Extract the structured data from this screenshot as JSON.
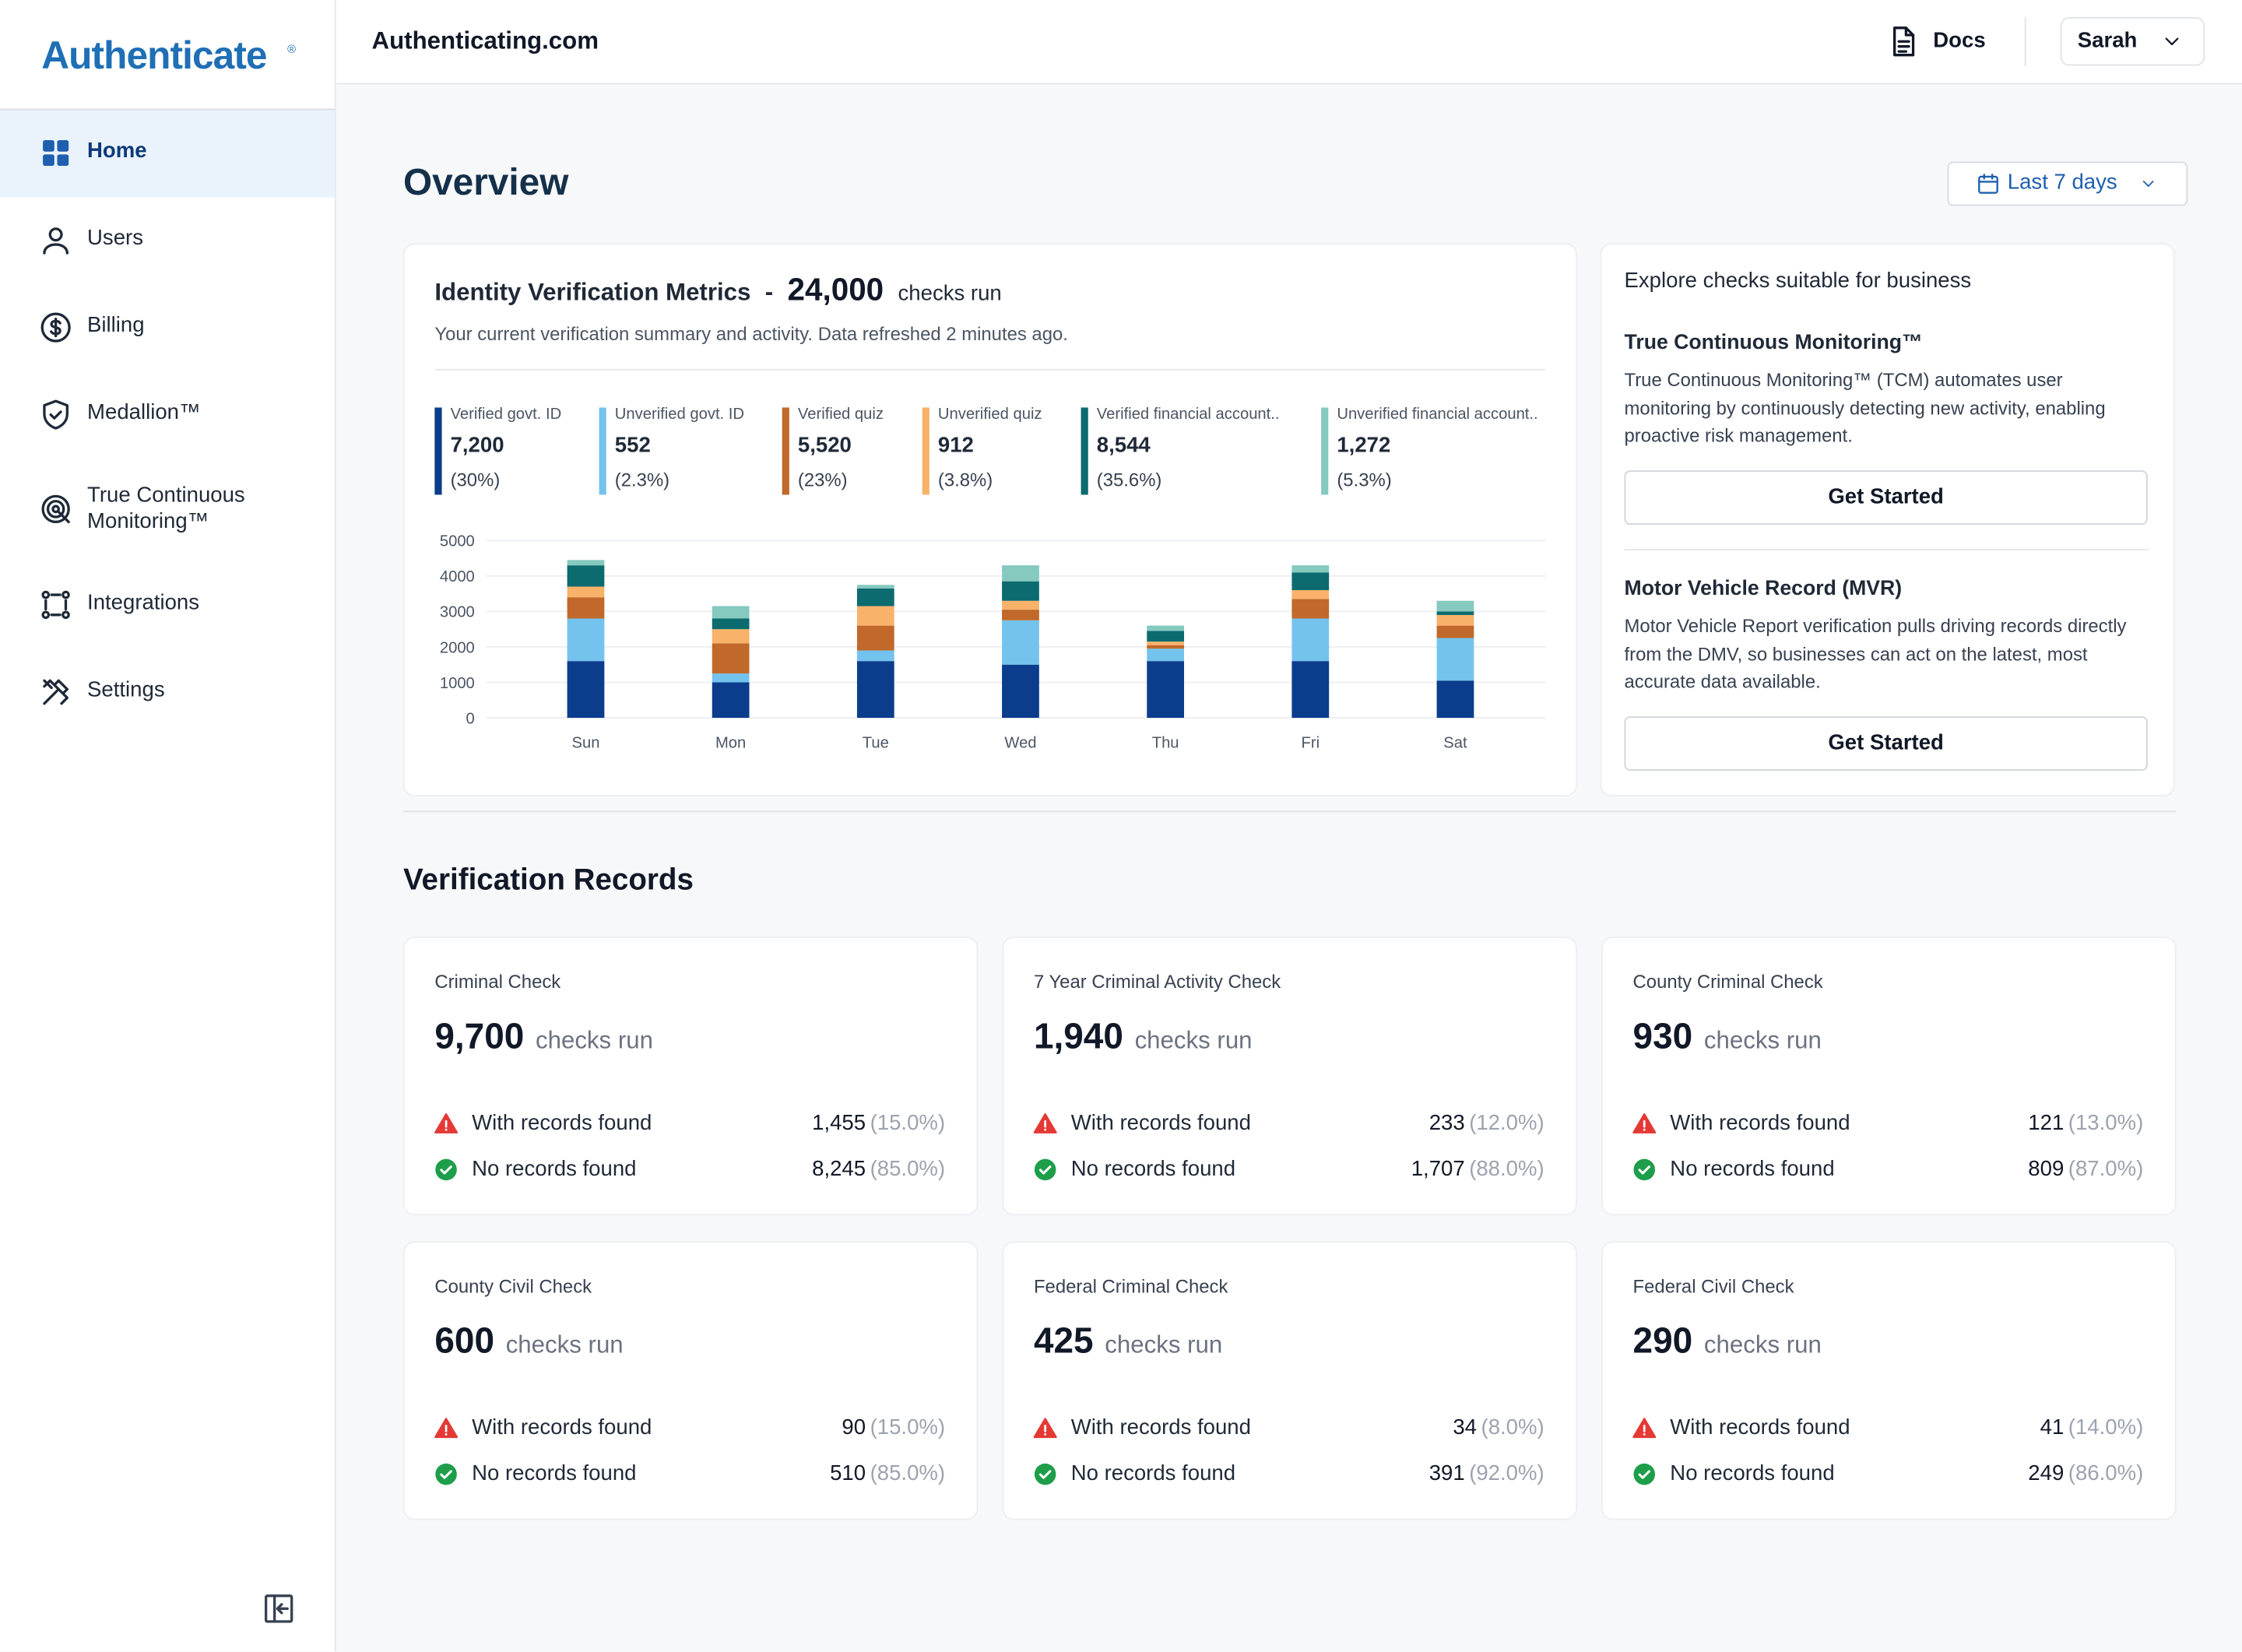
{
  "sidebar": {
    "logo": "Authenticate",
    "logo_mark": "®",
    "nav": [
      {
        "label": "Home"
      },
      {
        "label": "Users"
      },
      {
        "label": "Billing"
      },
      {
        "label": "Medallion™"
      },
      {
        "label": "True Continuous Monitoring™"
      },
      {
        "label": "Integrations"
      },
      {
        "label": "Settings"
      }
    ]
  },
  "header": {
    "site": "Authenticating.com",
    "docs": "Docs",
    "user": "Sarah"
  },
  "overview": {
    "title": "Overview",
    "range": "Last 7 days"
  },
  "metrics": {
    "title": "Identity Verification Metrics",
    "dash": "-",
    "total": "24,000",
    "unit": "checks run",
    "subtitle": "Your current verification summary and activity. Data refreshed 2 minutes ago.",
    "legend": [
      {
        "total": "7,200",
        "share": "(30%)"
      },
      {
        "total": "552",
        "share": "(2.3%)"
      },
      {
        "total": "5,520",
        "share": "(23%)"
      },
      {
        "total": "912",
        "share": "(3.8%)"
      },
      {
        "total": "8,544",
        "share": "(35.6%)"
      },
      {
        "total": "1,272",
        "share": "(5.3%)"
      }
    ]
  },
  "chart_data": {
    "type": "stacked-bar",
    "categories": [
      "Sun",
      "Mon",
      "Tue",
      "Wed",
      "Thu",
      "Fri",
      "Sat"
    ],
    "series": [
      {
        "name": "Verified govt. ID",
        "color": "#0b3d8c",
        "values": [
          1600,
          1000,
          1600,
          1500,
          1600,
          1600,
          1050
        ]
      },
      {
        "name": "Unverified govt. ID",
        "color": "#74c3ee",
        "values": [
          1200,
          250,
          300,
          1250,
          350,
          1200,
          1200
        ]
      },
      {
        "name": "Verified quiz",
        "color": "#c0692a",
        "values": [
          600,
          850,
          700,
          300,
          100,
          550,
          350
        ]
      },
      {
        "name": "Unverified quiz",
        "color": "#f8b26a",
        "values": [
          300,
          400,
          550,
          250,
          100,
          250,
          300
        ]
      },
      {
        "name": "Verified financial account..",
        "color": "#0b6b6f",
        "values": [
          600,
          300,
          500,
          550,
          300,
          500,
          100
        ]
      },
      {
        "name": "Unverified financial account..",
        "color": "#85c9bf",
        "values": [
          150,
          350,
          100,
          450,
          150,
          200,
          300
        ]
      }
    ],
    "ylim": [
      0,
      5000
    ],
    "yticks": [
      0,
      1000,
      2000,
      3000,
      4000,
      5000
    ],
    "grid": true
  },
  "explore": {
    "title": "Explore checks suitable for business",
    "items": [
      {
        "title": "True Continuous Monitoring™",
        "description": "True Continuous Monitoring™ (TCM) automates user monitoring by continuously detecting new activity, enabling proactive risk management.",
        "action": "Get Started"
      },
      {
        "title": "Motor Vehicle Record (MVR)",
        "description": "Motor Vehicle Report verification pulls driving records directly from the DMV, so businesses can act on the latest, most accurate data available.",
        "action": "Get Started"
      }
    ]
  },
  "records": {
    "title": "Verification Records",
    "cards": [
      {
        "name": "Criminal Check",
        "total": "9,700",
        "unit": "checks run",
        "with_label": "With records found",
        "with_count": "1,455",
        "with_pct": "(15.0%)",
        "no_label": "No records found",
        "no_count": "8,245",
        "no_pct": "(85.0%)"
      },
      {
        "name": "7 Year Criminal Activity Check",
        "total": "1,940",
        "unit": "checks run",
        "with_label": "With records found",
        "with_count": "233",
        "with_pct": "(12.0%)",
        "no_label": "No records found",
        "no_count": "1,707",
        "no_pct": "(88.0%)"
      },
      {
        "name": "County Criminal Check",
        "total": "930",
        "unit": "checks run",
        "with_label": "With records found",
        "with_count": "121",
        "with_pct": "(13.0%)",
        "no_label": "No records found",
        "no_count": "809",
        "no_pct": "(87.0%)"
      },
      {
        "name": "County Civil Check",
        "total": "600",
        "unit": "checks run",
        "with_label": "With records found",
        "with_count": "90",
        "with_pct": "(15.0%)",
        "no_label": "No records found",
        "no_count": "510",
        "no_pct": "(85.0%)"
      },
      {
        "name": "Federal Criminal Check",
        "total": "425",
        "unit": "checks run",
        "with_label": "With records found",
        "with_count": "34",
        "with_pct": "(8.0%)",
        "no_label": "No records found",
        "no_count": "391",
        "no_pct": "(92.0%)"
      },
      {
        "name": "Federal Civil Check",
        "total": "290",
        "unit": "checks run",
        "with_label": "With records found",
        "with_count": "41",
        "with_pct": "(14.0%)",
        "no_label": "No records found",
        "no_count": "249",
        "no_pct": "(86.0%)"
      }
    ]
  }
}
